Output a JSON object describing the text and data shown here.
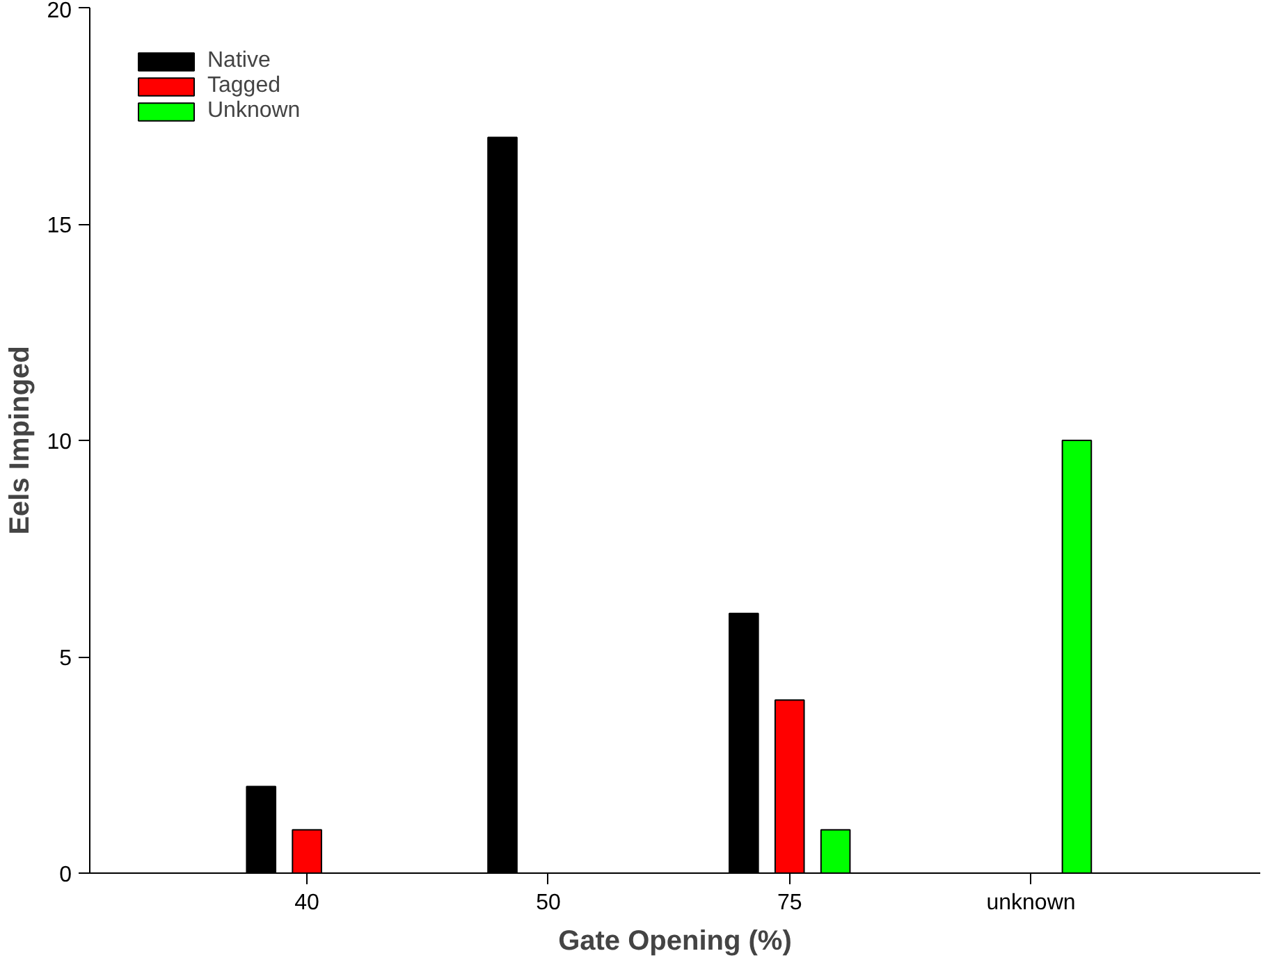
{
  "chart_data": {
    "type": "bar",
    "xlabel": "Gate Opening (%)",
    "ylabel": "Eels Impinged",
    "categories": [
      "40",
      "50",
      "75",
      "unknown"
    ],
    "series": [
      {
        "name": "Native",
        "color": "#000000",
        "values": [
          2,
          17,
          6,
          null
        ]
      },
      {
        "name": "Tagged",
        "color": "#ff0000",
        "values": [
          1,
          null,
          4,
          null
        ]
      },
      {
        "name": "Unknown",
        "color": "#00ff00",
        "values": [
          null,
          null,
          1,
          10
        ]
      }
    ],
    "ylim": [
      0,
      20
    ],
    "yticks": [
      0,
      5,
      10,
      15,
      20
    ],
    "grid": false,
    "legend": "top left"
  }
}
